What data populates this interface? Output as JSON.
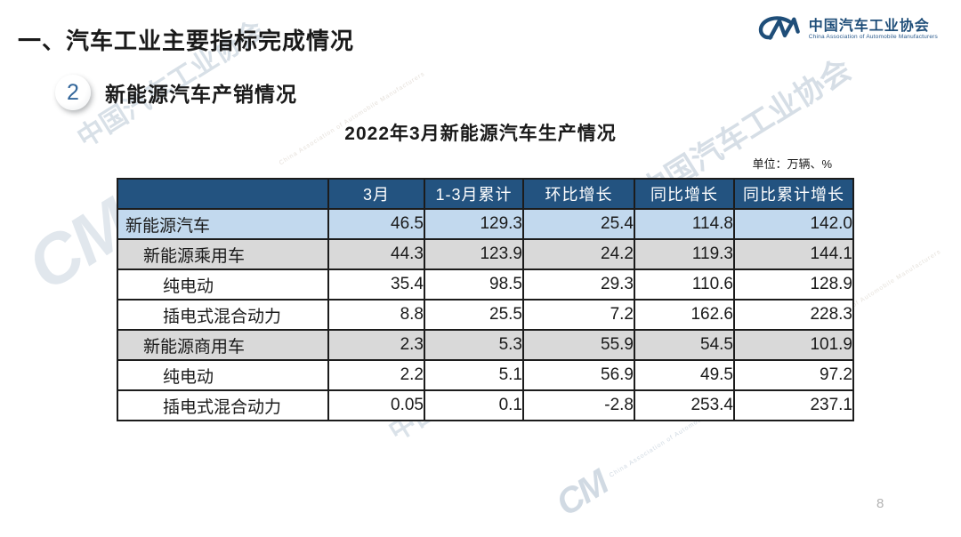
{
  "slide": {
    "title": "一、汽车工业主要指标完成情况",
    "section_number": "2",
    "section_title": "新能源汽车产销情况",
    "table_title": "2022年3月新能源汽车生产情况",
    "unit_note": "单位：万辆、%",
    "page_number": "8"
  },
  "logo": {
    "monogram": "CM",
    "name_cn": "中国汽车工业协会",
    "name_en": "China Association of Automobile Manufacturers",
    "color": "#1f4e79"
  },
  "watermark": {
    "monogram": "CM",
    "text": "中国汽车工业协会",
    "subtext": "China Association of Automobile Manufacturers"
  },
  "table": {
    "columns": [
      "",
      "3月",
      "1-3月累计",
      "环比增长",
      "同比增长",
      "同比累计增长"
    ],
    "rows": [
      {
        "label": "新能源汽车",
        "indent": 0,
        "style": "blue",
        "values": [
          "46.5",
          "129.3",
          "25.4",
          "114.8",
          "142.0"
        ]
      },
      {
        "label": "新能源乘用车",
        "indent": 1,
        "style": "gray",
        "values": [
          "44.3",
          "123.9",
          "24.2",
          "119.3",
          "144.1"
        ]
      },
      {
        "label": "纯电动",
        "indent": 2,
        "style": "white",
        "values": [
          "35.4",
          "98.5",
          "29.3",
          "110.6",
          "128.9"
        ]
      },
      {
        "label": "插电式混合动力",
        "indent": 2,
        "style": "white",
        "values": [
          "8.8",
          "25.5",
          "7.2",
          "162.6",
          "228.3"
        ]
      },
      {
        "label": "新能源商用车",
        "indent": 1,
        "style": "gray",
        "values": [
          "2.3",
          "5.3",
          "55.9",
          "54.5",
          "101.9"
        ]
      },
      {
        "label": "纯电动",
        "indent": 2,
        "style": "white",
        "values": [
          "2.2",
          "5.1",
          "56.9",
          "49.5",
          "97.2"
        ]
      },
      {
        "label": "插电式混合动力",
        "indent": 2,
        "style": "white",
        "values": [
          "0.05",
          "0.1",
          "-2.8",
          "253.4",
          "237.1"
        ]
      }
    ],
    "colors": {
      "header_bg": "#235380",
      "header_text": "#ffffff",
      "row_blue": "#c2d9ee",
      "row_gray": "#d9d9d9",
      "border": "#1c1c1c"
    }
  },
  "chart_data": {
    "type": "table",
    "title": "2022年3月新能源汽车生产情况",
    "unit": "万辆、%",
    "columns": [
      "3月",
      "1-3月累计",
      "环比增长",
      "同比增长",
      "同比累计增长"
    ],
    "rows": {
      "新能源汽车": [
        46.5,
        129.3,
        25.4,
        114.8,
        142.0
      ],
      "新能源乘用车": [
        44.3,
        123.9,
        24.2,
        119.3,
        144.1
      ],
      "新能源乘用车-纯电动": [
        35.4,
        98.5,
        29.3,
        110.6,
        128.9
      ],
      "新能源乘用车-插电式混合动力": [
        8.8,
        25.5,
        7.2,
        162.6,
        228.3
      ],
      "新能源商用车": [
        2.3,
        5.3,
        55.9,
        54.5,
        101.9
      ],
      "新能源商用车-纯电动": [
        2.2,
        5.1,
        56.9,
        49.5,
        97.2
      ],
      "新能源商用车-插电式混合动力": [
        0.05,
        0.1,
        -2.8,
        253.4,
        237.1
      ]
    }
  }
}
